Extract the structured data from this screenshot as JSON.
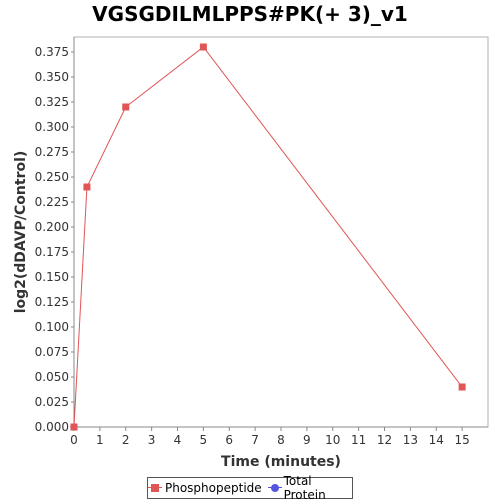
{
  "chart_data": {
    "type": "line",
    "title": "VGSGDILMLPPS#PK(+ 3)_v1",
    "xlabel": "Time (minutes)",
    "ylabel": "log2(dDAVP/Control)",
    "xlim": [
      0,
      16
    ],
    "ylim": [
      0,
      0.39
    ],
    "xticks": [
      0,
      1,
      2,
      3,
      4,
      5,
      6,
      7,
      8,
      9,
      10,
      11,
      12,
      13,
      14,
      15
    ],
    "yticks": [
      0.0,
      0.025,
      0.05,
      0.075,
      0.1,
      0.125,
      0.15,
      0.175,
      0.2,
      0.225,
      0.25,
      0.275,
      0.3,
      0.325,
      0.35,
      0.375
    ],
    "ytick_labels": [
      "0.000",
      "0.025",
      "0.050",
      "0.075",
      "0.100",
      "0.125",
      "0.150",
      "0.175",
      "0.200",
      "0.225",
      "0.250",
      "0.275",
      "0.300",
      "0.325",
      "0.350",
      "0.375"
    ],
    "grid": false,
    "legend_position": "bottom-center",
    "series": [
      {
        "name": "Phosphopeptide",
        "color": "#e05555",
        "marker": "square",
        "x": [
          0,
          0.5,
          2,
          5,
          15
        ],
        "y": [
          0.0,
          0.24,
          0.32,
          0.38,
          0.04
        ]
      },
      {
        "name": "Total Protein",
        "color": "#5555e0",
        "marker": "circle",
        "x": [],
        "y": []
      }
    ]
  }
}
